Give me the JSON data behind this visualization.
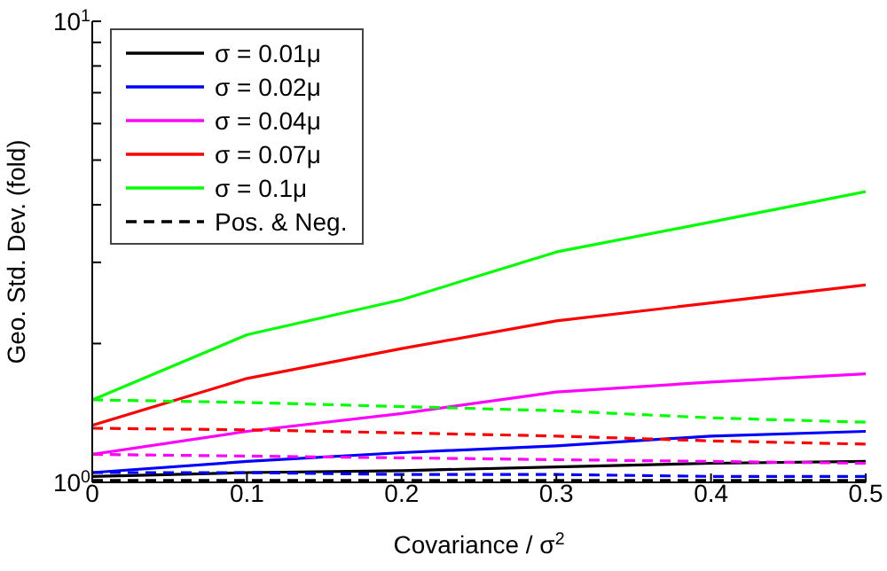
{
  "chart_data": {
    "type": "line",
    "xlabel": "Covariance / σ$^{2}$",
    "ylabel": "Geo. Std. Dev. (fold)",
    "x": [
      0,
      0.1,
      0.2,
      0.3,
      0.4,
      0.5
    ],
    "log": "y",
    "xlim": [
      0,
      0.5
    ],
    "xticks": [
      0,
      0.1,
      0.2,
      0.3,
      0.4,
      0.5
    ],
    "ylim": [
      1,
      10
    ],
    "yticks": [
      {
        "value": 1,
        "label": "10$^{0}$"
      },
      {
        "value": 2,
        "label": null
      },
      {
        "value": 3,
        "label": null
      },
      {
        "value": 4,
        "label": null
      },
      {
        "value": 5,
        "label": null
      },
      {
        "value": 6,
        "label": null
      },
      {
        "value": 7,
        "label": null
      },
      {
        "value": 8,
        "label": null
      },
      {
        "value": 9,
        "label": null
      },
      {
        "value": 10,
        "label": "10$^{1}$"
      }
    ],
    "legend": "top left",
    "marker": "none",
    "series": [
      {
        "name": "σ = 0.01μ",
        "color": "#000000",
        "line_style": "solid",
        "values": [
          1.03,
          1.05,
          1.06,
          1.08,
          1.1,
          1.11
        ]
      },
      {
        "name": "σ = 0.02μ",
        "color": "#0000ff",
        "line_style": "solid",
        "values": [
          1.05,
          1.11,
          1.16,
          1.2,
          1.26,
          1.29
        ]
      },
      {
        "name": "σ = 0.04μ",
        "color": "#ff00ff",
        "line_style": "solid",
        "values": [
          1.15,
          1.29,
          1.41,
          1.57,
          1.65,
          1.72
        ]
      },
      {
        "name": "σ = 0.07μ",
        "color": "#ff0000",
        "line_style": "solid",
        "values": [
          1.33,
          1.68,
          1.95,
          2.24,
          2.45,
          2.68
        ]
      },
      {
        "name": "σ = 0.1μ",
        "color": "#00ff00",
        "line_style": "solid",
        "values": [
          1.51,
          2.09,
          2.49,
          3.16,
          3.67,
          4.27
        ]
      },
      {
        "name": "Pos. & Neg.",
        "color": "#000000",
        "line_style": "dashed",
        "values": [
          1.01,
          1.01,
          1.01,
          1.01,
          1.01,
          1.01
        ]
      },
      {
        "color": "#0000ff",
        "line_style": "dashed",
        "values": [
          1.05,
          1.05,
          1.04,
          1.04,
          1.03,
          1.03
        ]
      },
      {
        "color": "#ff00ff",
        "line_style": "dashed",
        "values": [
          1.15,
          1.14,
          1.13,
          1.12,
          1.11,
          1.1
        ]
      },
      {
        "color": "#ff0000",
        "line_style": "dashed",
        "values": [
          1.31,
          1.3,
          1.28,
          1.26,
          1.23,
          1.21
        ]
      },
      {
        "color": "#00ff00",
        "line_style": "dashed",
        "values": [
          1.51,
          1.49,
          1.46,
          1.43,
          1.38,
          1.35
        ]
      }
    ]
  }
}
